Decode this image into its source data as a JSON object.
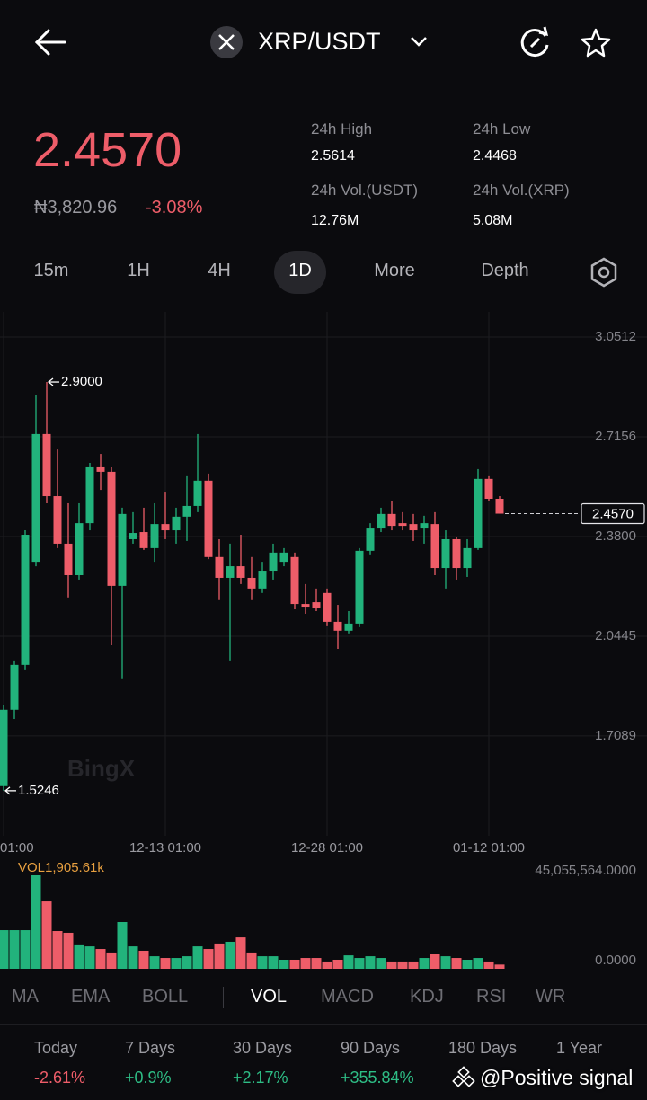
{
  "header": {
    "pair": "XRP/USDT"
  },
  "ticker": {
    "price": "2.4570",
    "fiat": "₦3,820.96",
    "change": "-3.08%"
  },
  "stats": [
    {
      "label": "24h High",
      "value": "2.5614"
    },
    {
      "label": "24h Low",
      "value": "2.4468"
    },
    {
      "label": "24h Vol.(USDT)",
      "value": "12.76M"
    },
    {
      "label": "24h Vol.(XRP)",
      "value": "5.08M"
    }
  ],
  "timeframes": {
    "items": [
      "15m",
      "1H",
      "4H",
      "1D",
      "More",
      "Depth"
    ],
    "selected": "1D"
  },
  "chart_data": {
    "type": "candlestick",
    "categories": [
      "01:00",
      null,
      null,
      null,
      null,
      null,
      null,
      null,
      null,
      null,
      null,
      null,
      null,
      null,
      null,
      "12-13 01:00",
      null,
      null,
      null,
      null,
      null,
      null,
      null,
      null,
      null,
      null,
      null,
      null,
      null,
      null,
      "12-28 01:00",
      null,
      null,
      null,
      null,
      null,
      null,
      null,
      null,
      null,
      null,
      null,
      null,
      null,
      null,
      "01-12 01:00",
      null
    ],
    "open": [
      1.54,
      1.797,
      1.948,
      2.295,
      2.725,
      2.516,
      2.356,
      2.25,
      2.425,
      2.613,
      2.598,
      2.214,
      2.371,
      2.395,
      2.341,
      2.422,
      2.401,
      2.447,
      2.483,
      2.568,
      2.311,
      2.241,
      2.28,
      2.241,
      2.205,
      2.265,
      2.295,
      2.311,
      2.153,
      2.159,
      2.19,
      2.093,
      2.063,
      2.087,
      2.332,
      2.407,
      2.456,
      2.425,
      2.422,
      2.407,
      2.422,
      2.274,
      2.371,
      2.274,
      2.341,
      2.574,
      2.507
    ],
    "high": [
      1.812,
      1.963,
      2.401,
      2.855,
      2.9,
      2.673,
      2.492,
      2.492,
      2.628,
      2.658,
      2.613,
      2.477,
      2.462,
      2.477,
      2.492,
      2.528,
      2.477,
      2.583,
      2.725,
      2.592,
      2.371,
      2.356,
      2.386,
      2.311,
      2.295,
      2.356,
      2.341,
      2.326,
      2.22,
      2.205,
      2.205,
      2.15,
      2.129,
      2.341,
      2.425,
      2.477,
      2.498,
      2.462,
      2.456,
      2.45,
      2.462,
      2.401,
      2.377,
      2.371,
      2.607,
      2.583,
      2.516
    ],
    "low": [
      1.5246,
      1.766,
      1.933,
      2.28,
      2.492,
      2.341,
      2.175,
      2.235,
      2.401,
      2.537,
      2.014,
      1.903,
      2.356,
      2.335,
      2.295,
      2.371,
      2.356,
      2.365,
      2.462,
      2.304,
      2.166,
      1.963,
      2.22,
      2.166,
      2.19,
      2.235,
      2.28,
      2.135,
      2.12,
      2.129,
      2.078,
      2.002,
      2.054,
      2.075,
      2.317,
      2.395,
      2.401,
      2.401,
      2.365,
      2.356,
      2.25,
      2.205,
      2.235,
      2.244,
      2.335,
      2.498,
      2.457
    ],
    "close": [
      1.797,
      1.948,
      2.386,
      2.725,
      2.516,
      2.356,
      2.25,
      2.425,
      2.613,
      2.598,
      2.214,
      2.456,
      2.392,
      2.341,
      2.422,
      2.401,
      2.447,
      2.483,
      2.568,
      2.311,
      2.241,
      2.28,
      2.241,
      2.205,
      2.265,
      2.326,
      2.326,
      2.153,
      2.144,
      2.138,
      2.093,
      2.063,
      2.087,
      2.332,
      2.407,
      2.456,
      2.416,
      2.416,
      2.401,
      2.425,
      2.274,
      2.371,
      2.274,
      2.341,
      2.574,
      2.507,
      2.457
    ],
    "colors": {
      "up": "#22b37c",
      "down": "#ee5d69"
    },
    "ylim": [
      1.373,
      3.136
    ],
    "yticks": [
      3.0512,
      2.7156,
      {
        "value": 2.38,
        "label": "2.3800"
      },
      2.0445,
      1.7089
    ],
    "grid": true,
    "last_price": {
      "value": 2.457,
      "label": "2.4570"
    },
    "high_marker": {
      "value": 2.9,
      "label": "2.9000"
    },
    "low_marker": {
      "value": 1.5246,
      "label": "1.5246"
    },
    "watermark": "BingX",
    "volume": {
      "title": "VOL1,905.61k",
      "values": [
        17600000,
        17600000,
        17600000,
        42600000,
        30700000,
        17200000,
        16400000,
        11100000,
        10200000,
        9000000,
        7400000,
        21300000,
        10200000,
        8200000,
        5700000,
        4900000,
        4900000,
        5700000,
        10200000,
        9000000,
        11500000,
        12300000,
        14300000,
        7400000,
        5700000,
        5700000,
        4100000,
        4100000,
        4900000,
        4900000,
        3300000,
        4100000,
        6100000,
        4900000,
        5700000,
        4900000,
        3300000,
        3300000,
        3300000,
        4900000,
        6600000,
        5700000,
        4900000,
        4100000,
        4900000,
        3300000,
        1905610
      ],
      "ylim": [
        0,
        45055564
      ],
      "yticks": [
        {
          "value": 0,
          "label": "0.0000"
        },
        {
          "value": 45055564,
          "label": "45,055,564.0000"
        }
      ]
    }
  },
  "indicators": {
    "main": [
      "MA",
      "EMA",
      "BOLL"
    ],
    "sub": [
      "VOL",
      "MACD",
      "KDJ",
      "RSI",
      "WR"
    ],
    "active": "VOL"
  },
  "performance": [
    {
      "label": "Today",
      "value": "-2.61%",
      "color": "#ee5d69"
    },
    {
      "label": "7 Days",
      "value": "+0.9%",
      "color": "#2ebd85"
    },
    {
      "label": "30 Days",
      "value": "+2.17%",
      "color": "#2ebd85"
    },
    {
      "label": "90 Days",
      "value": "+355.84%",
      "color": "#2ebd85"
    },
    {
      "label": "180 Days"
    },
    {
      "label": "1 Year"
    }
  ],
  "overlay": "@Positive signal"
}
